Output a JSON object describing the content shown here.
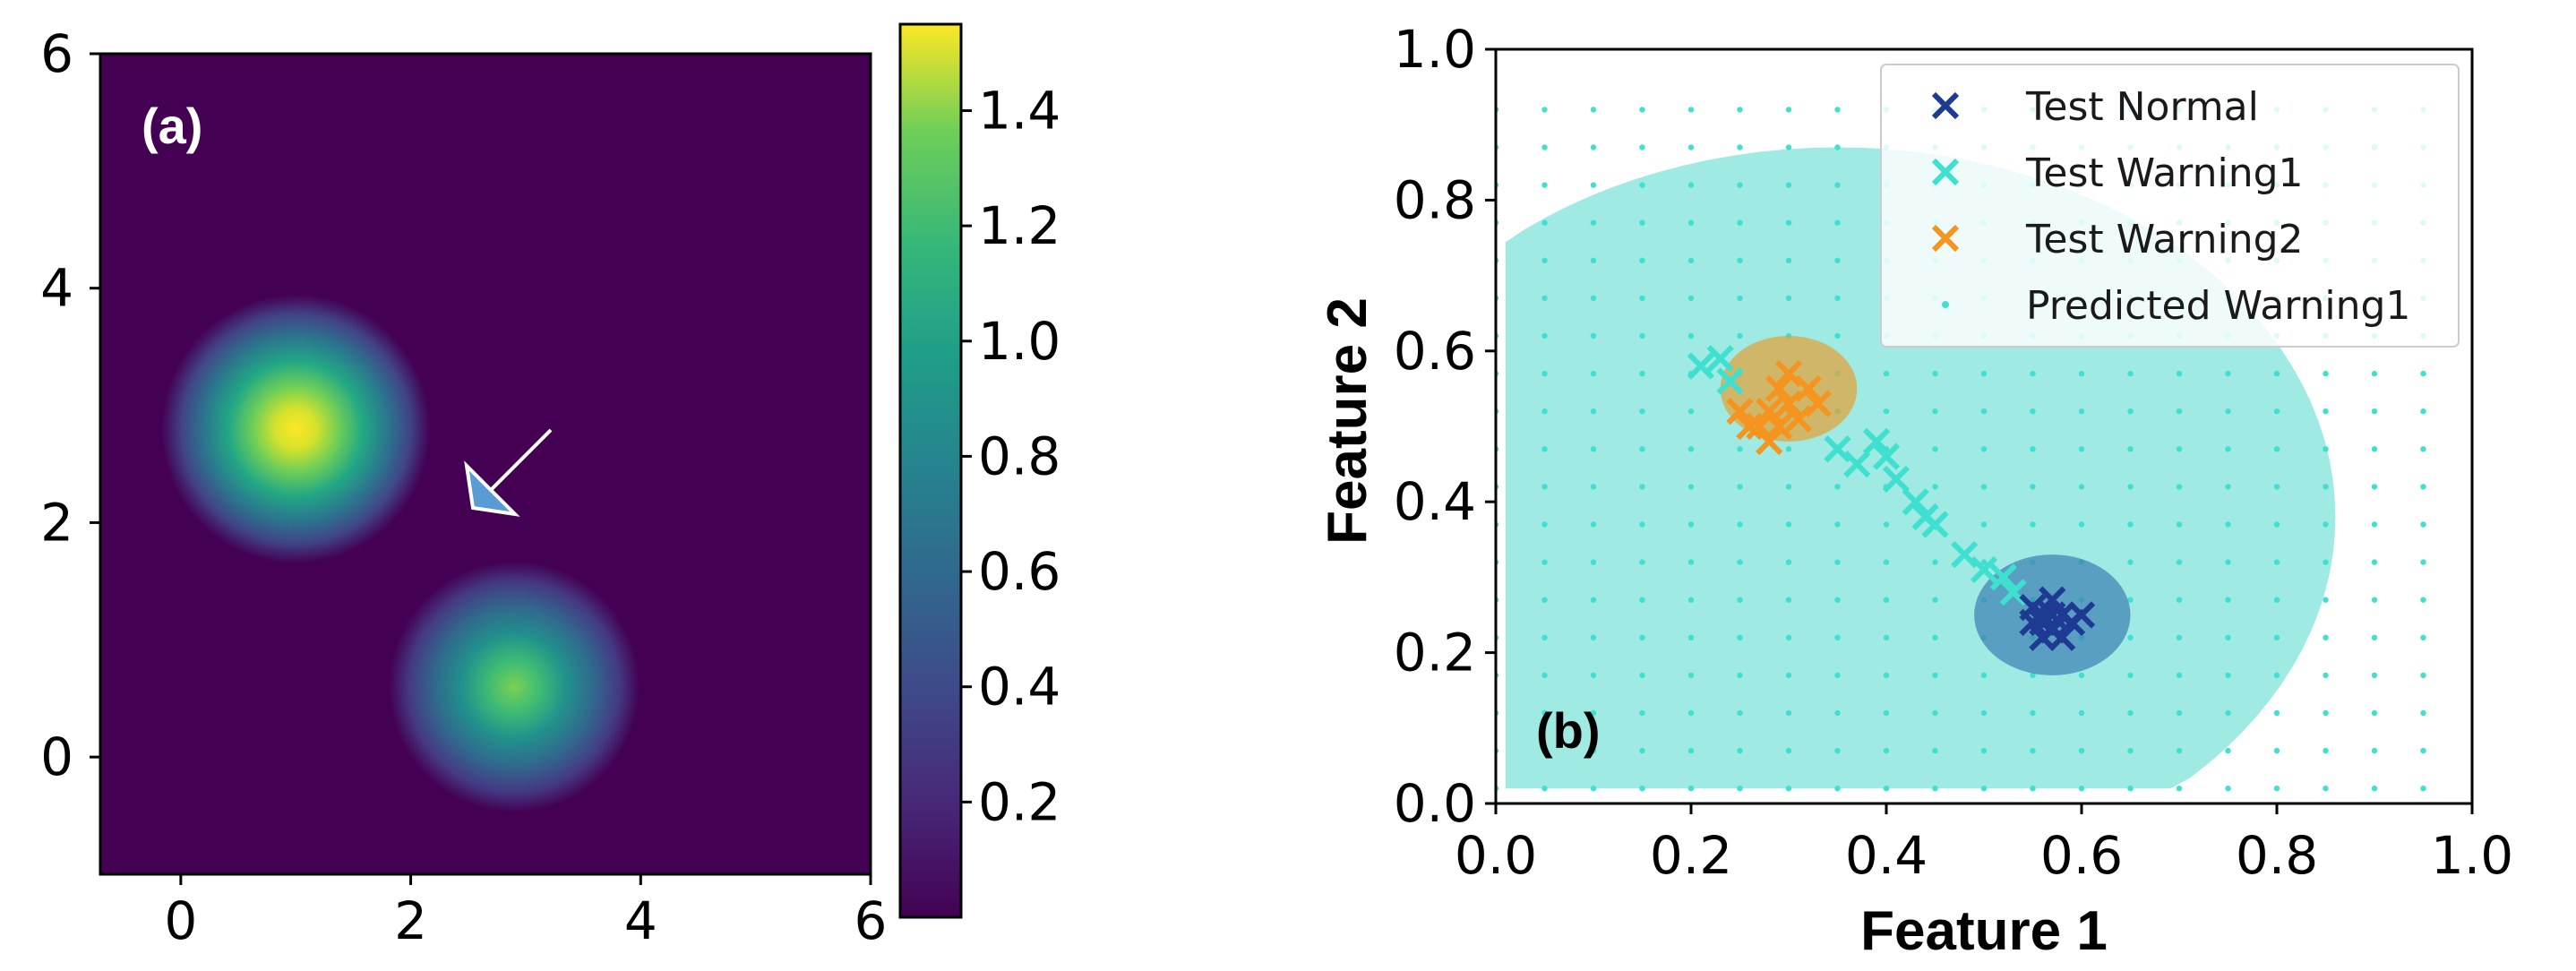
{
  "chart_data": [
    {
      "type": "heatmap",
      "panel_label": "(a)",
      "xlim": [
        -0.7,
        6
      ],
      "ylim": [
        -1,
        6
      ],
      "xticks": [
        "0",
        "2",
        "4",
        "6"
      ],
      "yticks": [
        "0",
        "2",
        "4",
        "6"
      ],
      "peaks": [
        {
          "x": 1.0,
          "y": 2.8,
          "value": 1.55
        },
        {
          "x": 2.9,
          "y": 0.6,
          "value": 1.05
        }
      ],
      "arrow": {
        "from": [
          3.4,
          2.9
        ],
        "to": [
          2.6,
          2.2
        ]
      },
      "colorbar": {
        "min": 0.0,
        "max": 1.55,
        "ticks": [
          "0.2",
          "0.4",
          "0.6",
          "0.8",
          "1.0",
          "1.2",
          "1.4"
        ],
        "colormap": "viridis"
      }
    },
    {
      "type": "scatter",
      "panel_label": "(b)",
      "xlabel": "Feature 1",
      "ylabel": "Feature 2",
      "xlim": [
        0.0,
        1.0
      ],
      "ylim": [
        0.0,
        1.0
      ],
      "xticks": [
        "0.0",
        "0.2",
        "0.4",
        "0.6",
        "0.8",
        "1.0"
      ],
      "yticks": [
        "0.0",
        "0.2",
        "0.4",
        "0.6",
        "0.8",
        "1.0"
      ],
      "legend_position": "top-right",
      "series": [
        {
          "name": "Test Normal",
          "marker": "x",
          "color": "#1f3a93",
          "points": [
            [
              0.55,
              0.24
            ],
            [
              0.56,
              0.25
            ],
            [
              0.57,
              0.23
            ],
            [
              0.58,
              0.25
            ],
            [
              0.56,
              0.22
            ],
            [
              0.57,
              0.27
            ],
            [
              0.59,
              0.24
            ],
            [
              0.55,
              0.26
            ],
            [
              0.58,
              0.22
            ],
            [
              0.56,
              0.24
            ],
            [
              0.6,
              0.25
            ],
            [
              0.57,
              0.25
            ]
          ]
        },
        {
          "name": "Test Warning1",
          "marker": "x",
          "color": "#40e0d0",
          "points": [
            [
              0.21,
              0.58
            ],
            [
              0.23,
              0.59
            ],
            [
              0.24,
              0.56
            ],
            [
              0.35,
              0.47
            ],
            [
              0.37,
              0.45
            ],
            [
              0.39,
              0.48
            ],
            [
              0.4,
              0.46
            ],
            [
              0.41,
              0.43
            ],
            [
              0.43,
              0.4
            ],
            [
              0.44,
              0.38
            ],
            [
              0.45,
              0.37
            ],
            [
              0.48,
              0.33
            ],
            [
              0.5,
              0.31
            ],
            [
              0.52,
              0.3
            ],
            [
              0.53,
              0.28
            ]
          ]
        },
        {
          "name": "Test Warning2",
          "marker": "x",
          "color": "#f5941e",
          "points": [
            [
              0.25,
              0.52
            ],
            [
              0.27,
              0.5
            ],
            [
              0.28,
              0.48
            ],
            [
              0.29,
              0.55
            ],
            [
              0.3,
              0.53
            ],
            [
              0.31,
              0.51
            ],
            [
              0.3,
              0.57
            ],
            [
              0.32,
              0.55
            ],
            [
              0.28,
              0.52
            ],
            [
              0.26,
              0.5
            ],
            [
              0.33,
              0.53
            ],
            [
              0.29,
              0.5
            ]
          ]
        },
        {
          "name": "Predicted Warning1",
          "marker": "dot",
          "color": "#40e0d0",
          "grid_step": 0.05
        }
      ],
      "regions": [
        {
          "name": "Warning1 region",
          "color": "#7fe3da"
        },
        {
          "name": "Normal ellipse",
          "center": [
            0.57,
            0.25
          ],
          "rx": 0.08,
          "ry": 0.08,
          "color": "#3a7fb3"
        },
        {
          "name": "Warning2 ellipse",
          "center": [
            0.3,
            0.55
          ],
          "rx": 0.07,
          "ry": 0.07,
          "color": "#d9a545"
        }
      ]
    }
  ]
}
